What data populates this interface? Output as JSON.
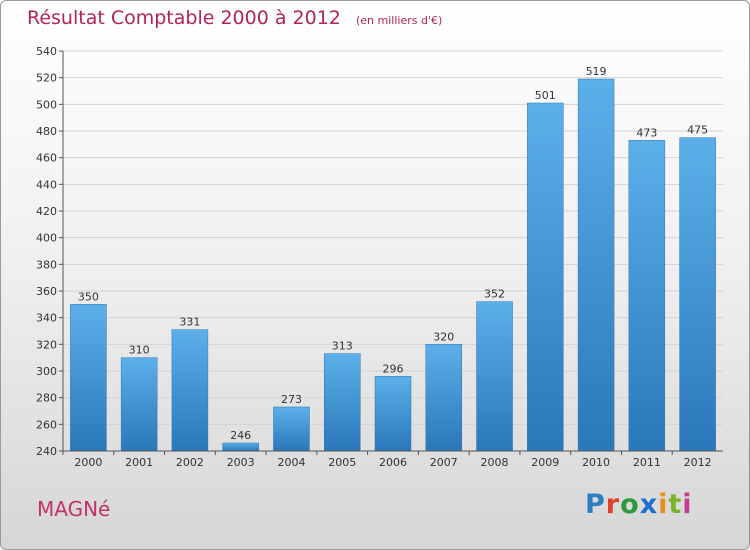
{
  "header": {
    "title": "Résultat Comptable 2000 à 2012",
    "subtitle": "(en milliers d'€)"
  },
  "footer": {
    "commune": "MAGNé",
    "brand_letters": [
      "P",
      "r",
      "o",
      "x",
      "i",
      "t",
      "i"
    ],
    "brand_colors": [
      "#2c7fc4",
      "#e0412e",
      "#2c9a3c",
      "#1d6fd0",
      "#e58f1c",
      "#79b52a",
      "#c43d8e"
    ]
  },
  "chart_data": {
    "type": "bar",
    "title": "Résultat Comptable 2000 à 2012",
    "subtitle": "(en milliers d'€)",
    "xlabel": "",
    "ylabel": "",
    "categories": [
      "2000",
      "2001",
      "2002",
      "2003",
      "2004",
      "2005",
      "2006",
      "2007",
      "2008",
      "2009",
      "2010",
      "2011",
      "2012"
    ],
    "values": [
      350,
      310,
      331,
      246,
      273,
      313,
      296,
      320,
      352,
      501,
      519,
      473,
      475
    ],
    "data_labels": [
      "350",
      "310",
      "331",
      "246",
      "273",
      "313",
      "296",
      "320",
      "352",
      "501",
      "519",
      "473",
      "475"
    ],
    "ylim": [
      240,
      540
    ],
    "yticks": [
      "240",
      "260",
      "280",
      "300",
      "320",
      "340",
      "360",
      "380",
      "400",
      "420",
      "440",
      "460",
      "480",
      "500",
      "520",
      "540"
    ],
    "grid": true,
    "bar_color": "#3f90d4"
  }
}
